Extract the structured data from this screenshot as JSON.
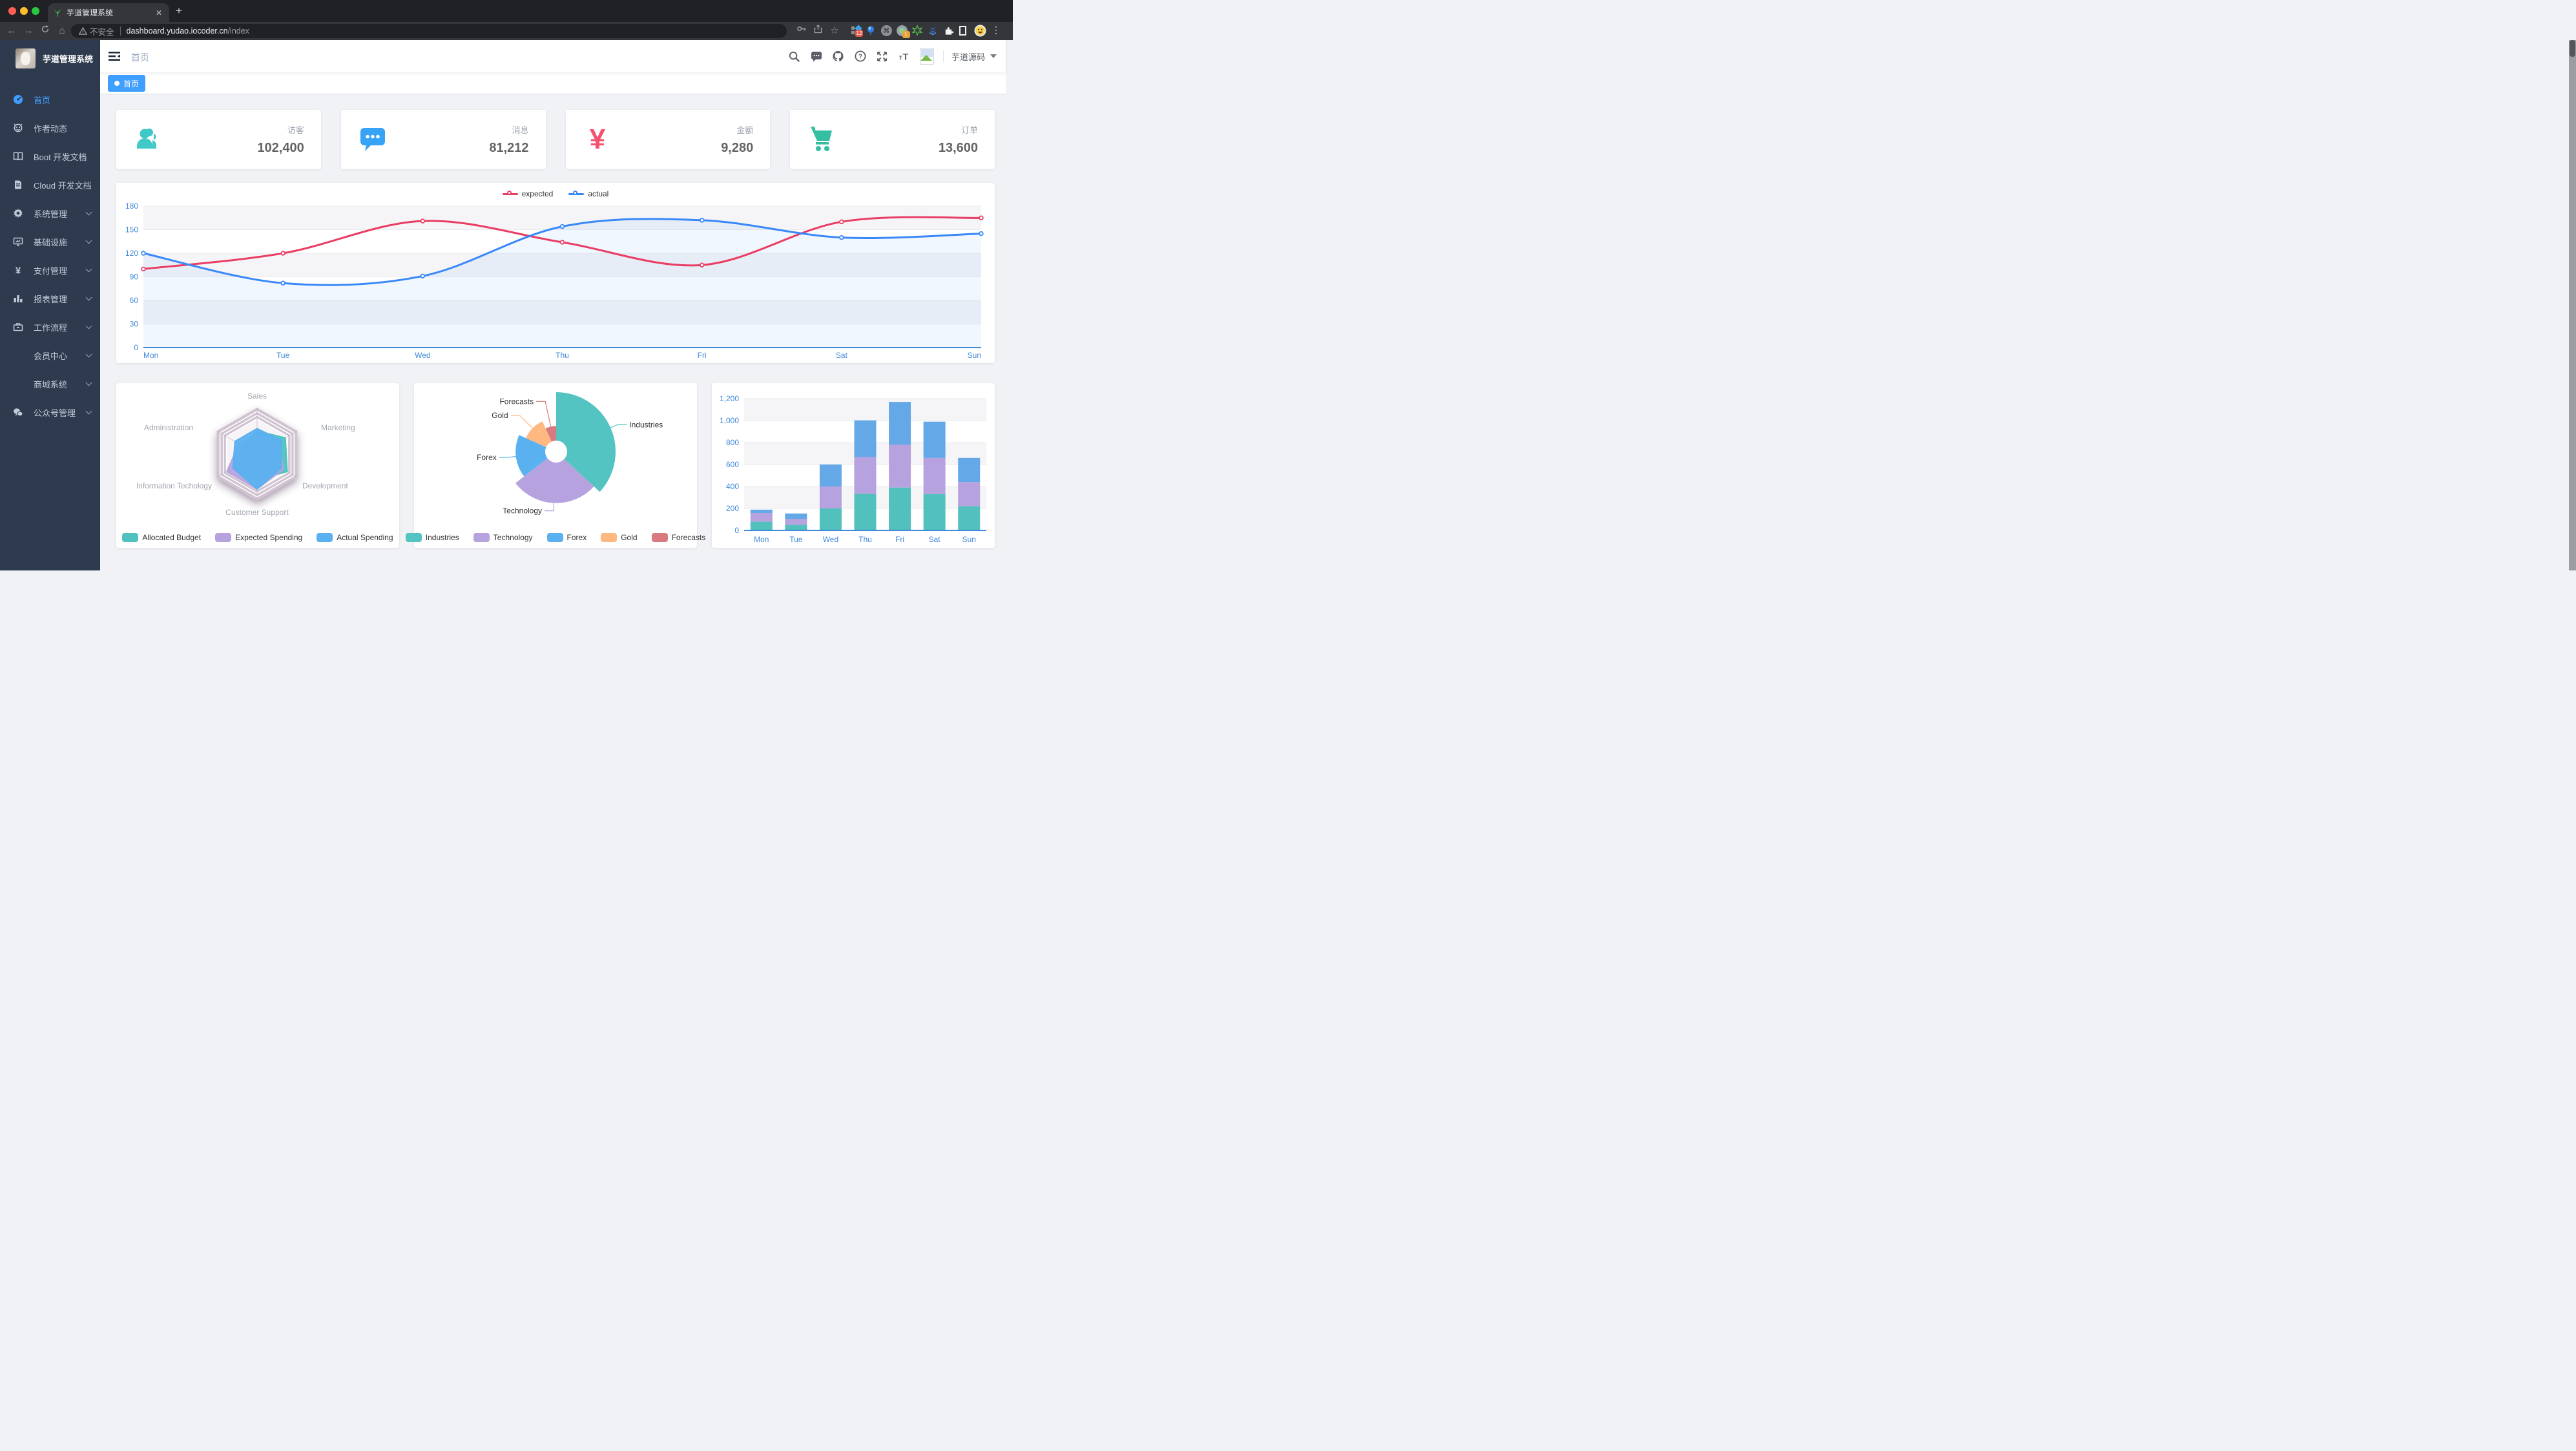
{
  "browser": {
    "tab_title": "芋道管理系统",
    "new_tab": "+",
    "close_glyph": "✕",
    "back": "←",
    "forward": "→",
    "home": "⌂",
    "security_label": "不安全",
    "url_host": "dashboard.yudao.iocoder.cn",
    "url_path": "/index",
    "star": "☆",
    "kebab": "⋮",
    "cmd_glyph": "⌘",
    "ext_badge_grid": "12",
    "ext_badge_circle": "1"
  },
  "sidebar": {
    "app_title": "芋道管理系统",
    "items": [
      {
        "label": "首页",
        "icon": "dashboard-icon",
        "active": true,
        "arrow": false
      },
      {
        "label": "作者动态",
        "icon": "author-icon",
        "active": false,
        "arrow": false
      },
      {
        "label": "Boot 开发文档",
        "icon": "book-icon",
        "active": false,
        "arrow": false
      },
      {
        "label": "Cloud 开发文档",
        "icon": "document-icon",
        "active": false,
        "arrow": false
      },
      {
        "label": "系统管理",
        "icon": "gear-icon",
        "active": false,
        "arrow": true
      },
      {
        "label": "基础设施",
        "icon": "monitor-icon",
        "active": false,
        "arrow": true
      },
      {
        "label": "支付管理",
        "icon": "yen-icon",
        "active": false,
        "arrow": true
      },
      {
        "label": "报表管理",
        "icon": "barchart-icon",
        "active": false,
        "arrow": true
      },
      {
        "label": "工作流程",
        "icon": "toolbox-icon",
        "active": false,
        "arrow": true
      },
      {
        "label": "会员中心",
        "icon": "none",
        "active": false,
        "arrow": true
      },
      {
        "label": "商城系统",
        "icon": "none",
        "active": false,
        "arrow": true
      },
      {
        "label": "公众号管理",
        "icon": "wechat-icon",
        "active": false,
        "arrow": true
      }
    ]
  },
  "navbar": {
    "breadcrumb": "首页",
    "username": "芋道源码"
  },
  "tags": {
    "active_tag": "首页"
  },
  "stats": [
    {
      "label": "访客",
      "value": "102,400",
      "icon": "people-icon",
      "color": "#40c9c6"
    },
    {
      "label": "消息",
      "value": "81,212",
      "icon": "message-icon",
      "color": "#36a3f7"
    },
    {
      "label": "金额",
      "value": "9,280",
      "icon": "money-icon",
      "color": "#f4516c"
    },
    {
      "label": "订单",
      "value": "13,600",
      "icon": "cart-icon",
      "color": "#34bfa3"
    }
  ],
  "chart_data": [
    {
      "type": "line",
      "categories": [
        "Mon",
        "Tue",
        "Wed",
        "Thu",
        "Fri",
        "Sat",
        "Sun"
      ],
      "series": [
        {
          "name": "expected",
          "color": "#ea3d63",
          "values": [
            100,
            120,
            161,
            134,
            105,
            160,
            165
          ]
        },
        {
          "name": "actual",
          "color": "#3888fa",
          "values": [
            120,
            82,
            91,
            154,
            162,
            140,
            145
          ]
        }
      ],
      "ylim": [
        0,
        180
      ],
      "yticks": [
        0,
        30,
        60,
        90,
        120,
        150,
        180
      ],
      "legend_position": "top",
      "grid": "striped-horizontal",
      "axis_label_color": "#4189d9"
    },
    {
      "type": "radar",
      "indicators": [
        {
          "name": "Sales",
          "max": 10000
        },
        {
          "name": "Marketing",
          "max": 20000
        },
        {
          "name": "Development",
          "max": 20000
        },
        {
          "name": "Customer Support",
          "max": 20000
        },
        {
          "name": "Information Techology",
          "max": 20000
        },
        {
          "name": "Administration",
          "max": 20000
        }
      ],
      "series": [
        {
          "name": "Allocated Budget",
          "color": "#4fc2c0",
          "values": [
            5000,
            14000,
            15000,
            11000,
            12000,
            7000
          ]
        },
        {
          "name": "Expected Spending",
          "color": "#b6a2de",
          "values": [
            4000,
            11000,
            13000,
            15000,
            15000,
            9000
          ]
        },
        {
          "name": "Actual Spending",
          "color": "#5ab1ef",
          "values": [
            5500,
            12000,
            12000,
            15000,
            12000,
            11000
          ]
        }
      ],
      "legend_position": "bottom"
    },
    {
      "type": "pie",
      "rose": true,
      "items": [
        {
          "name": "Industries",
          "value": 320,
          "color": "#53c4c1"
        },
        {
          "name": "Technology",
          "value": 240,
          "color": "#b6a2de"
        },
        {
          "name": "Forex",
          "value": 149,
          "color": "#5ab1ef"
        },
        {
          "name": "Gold",
          "value": 100,
          "color": "#ffb980"
        },
        {
          "name": "Forecasts",
          "value": 59,
          "color": "#d87a80"
        }
      ],
      "legend_position": "bottom"
    },
    {
      "type": "bar",
      "stacked": true,
      "categories": [
        "Mon",
        "Tue",
        "Wed",
        "Thu",
        "Fri",
        "Sat",
        "Sun"
      ],
      "series": [
        {
          "name": "",
          "color": "#52c0bd",
          "values": [
            79,
            52,
            200,
            334,
            390,
            330,
            220
          ]
        },
        {
          "name": "",
          "color": "#b6a2de",
          "values": [
            80,
            52,
            200,
            334,
            390,
            330,
            220
          ]
        },
        {
          "name": "",
          "color": "#64a8e8",
          "values": [
            30,
            50,
            200,
            334,
            390,
            330,
            220
          ]
        }
      ],
      "ylim": [
        0,
        1200
      ],
      "ytick_labels": [
        "0",
        "200",
        "400",
        "600",
        "800",
        "1,000",
        "1,200"
      ],
      "axis_label_color": "#4189d9"
    }
  ]
}
